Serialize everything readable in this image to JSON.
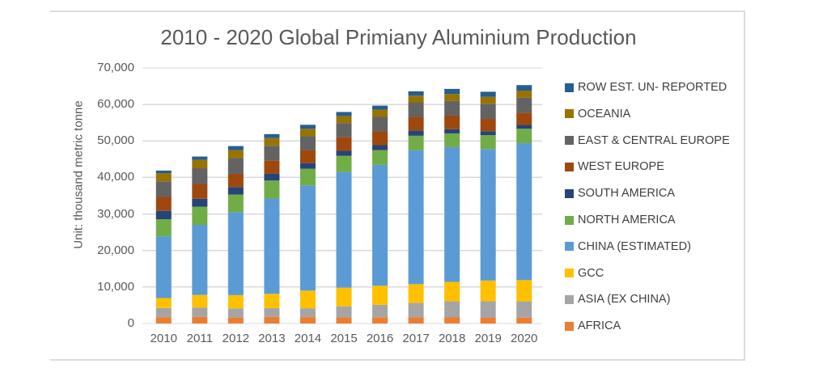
{
  "frame": {
    "background": "#ffffff",
    "border_color": "#dcdcdc"
  },
  "colors": {
    "gridline": "#d9d9d9",
    "axis_line": "#d9d9d9",
    "title_text": "#595959",
    "axis_text": "#595959",
    "legend_text": "#3f3f3f",
    "plot_background": "#ffffff"
  },
  "chart_data": {
    "type": "bar",
    "stacked": true,
    "title": "2010 - 2020 Global Primiany Aluminium Production",
    "xlabel": "",
    "ylabel": "Unit: thousand metric tonne",
    "unit": "thousand metric tonne",
    "ylim": [
      0,
      70000
    ],
    "ytick_step": 10000,
    "ytick_labels": [
      "0",
      "10,000",
      "20,000",
      "30,000",
      "40,000",
      "50,000",
      "60,000",
      "70,000"
    ],
    "grid": true,
    "legend_position": "right",
    "legend_order": "top item is topmost stack segment (reverse of stacking order)",
    "categories": [
      "2010",
      "2011",
      "2012",
      "2013",
      "2014",
      "2015",
      "2016",
      "2017",
      "2018",
      "2019",
      "2020"
    ],
    "series": [
      {
        "name": "AFRICA",
        "color": "#ED7D31",
        "values": [
          1742,
          1805,
          1639,
          1812,
          1746,
          1687,
          1691,
          1679,
          1661,
          1642,
          1597
        ]
      },
      {
        "name": "ASIA (EX CHINA)",
        "color": "#A5A5A5",
        "values": [
          2500,
          2536,
          2510,
          2439,
          2429,
          3001,
          3464,
          3951,
          4418,
          4465,
          4478
        ]
      },
      {
        "name": "GCC",
        "color": "#FFC000",
        "values": [
          2724,
          3483,
          3635,
          3887,
          4832,
          5104,
          5197,
          5149,
          5331,
          5667,
          5810
        ]
      },
      {
        "name": "CHINA (ESTIMATED)",
        "color": "#5B9BD5",
        "values": [
          16900,
          19200,
          22700,
          26100,
          28800,
          31700,
          33100,
          36700,
          36900,
          36000,
          37500
        ]
      },
      {
        "name": "NORTH AMERICA",
        "color": "#70AD47",
        "values": [
          4689,
          4969,
          4851,
          4918,
          4585,
          4469,
          4027,
          3950,
          3752,
          3809,
          3970
        ]
      },
      {
        "name": "SOUTH AMERICA",
        "color": "#264478",
        "values": [
          2305,
          2185,
          2052,
          1906,
          1543,
          1325,
          1361,
          1378,
          1164,
          1094,
          1034
        ]
      },
      {
        "name": "WEST EUROPE",
        "color": "#9E480E",
        "values": [
          3800,
          4027,
          3605,
          3616,
          3596,
          3745,
          3779,
          3776,
          3712,
          3362,
          3299
        ]
      },
      {
        "name": "EAST & CENTRAL EUROPE",
        "color": "#636363",
        "values": [
          4253,
          4319,
          4323,
          3995,
          3764,
          3829,
          3981,
          3999,
          4007,
          4144,
          4188
        ]
      },
      {
        "name": "OCEANIA",
        "color": "#997300",
        "values": [
          2277,
          2306,
          2186,
          2104,
          2035,
          1978,
          1974,
          1818,
          1917,
          1898,
          1922
        ]
      },
      {
        "name": "ROW EST. UN- REPORTED",
        "color": "#255E91",
        "values": [
          700,
          900,
          1100,
          1100,
          1100,
          1100,
          1100,
          1200,
          1400,
          1400,
          1500
        ]
      }
    ]
  }
}
